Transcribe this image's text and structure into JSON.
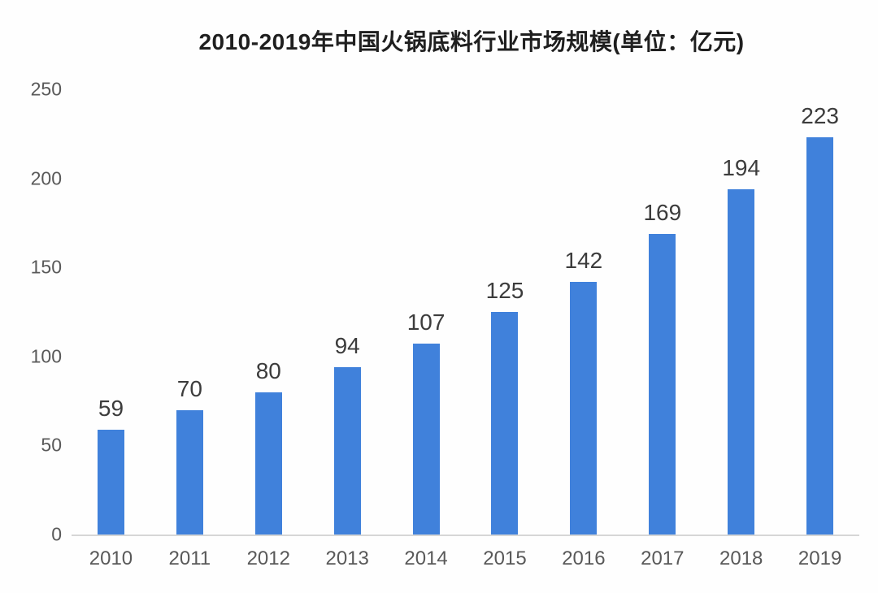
{
  "chart_data": {
    "type": "bar",
    "title": "2010-2019年中国火锅底料行业市场规模(单位：亿元)",
    "categories": [
      "2010",
      "2011",
      "2012",
      "2013",
      "2014",
      "2015",
      "2016",
      "2017",
      "2018",
      "2019"
    ],
    "values": [
      59,
      70,
      80,
      94,
      107,
      125,
      142,
      169,
      194,
      223
    ],
    "xlabel": "",
    "ylabel": "",
    "ylim": [
      0,
      250
    ],
    "y_ticks": [
      0,
      50,
      100,
      150,
      200,
      250
    ],
    "grid": false,
    "legend_position": "none",
    "bar_color": "#4081DB",
    "value_label_color": "#3c3c3c",
    "tick_label_color": "#595959",
    "axis_line_color": "#d6d6d6",
    "title_color": "#1f1f1f",
    "background_color": "#fefefe"
  }
}
